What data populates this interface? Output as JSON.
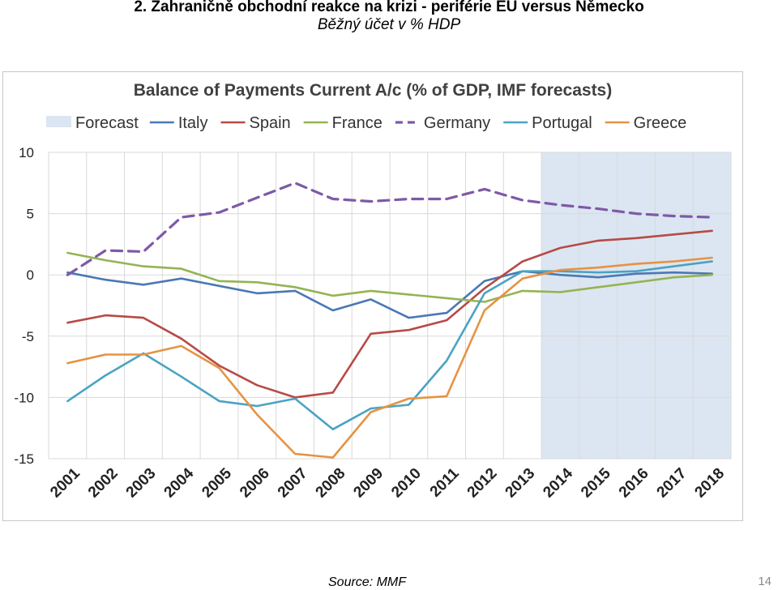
{
  "slide": {
    "title": "2. Zahraničně obchodní reakce na krizi - periférie EU versus Německo",
    "subtitle": "Běžný účet v % HDP",
    "source": "Source: MMF",
    "page_number": "14"
  },
  "chart_data": {
    "type": "line",
    "title": "Balance of Payments Current A/c (% of GDP, IMF forecasts)",
    "xlabel": "",
    "ylabel": "",
    "x": [
      "2001",
      "2002",
      "2003",
      "2004",
      "2005",
      "2006",
      "2007",
      "2008",
      "2009",
      "2010",
      "2011",
      "2012",
      "2013",
      "2014",
      "2015",
      "2016",
      "2017",
      "2018"
    ],
    "ylim": [
      -15,
      10
    ],
    "yticks": [
      10,
      5,
      0,
      -5,
      -10,
      -15
    ],
    "grid": true,
    "legend_position": "top",
    "forecast": {
      "label": "Forecast",
      "start": "2014",
      "end": "2018",
      "color": "#dce6f2"
    },
    "series": [
      {
        "name": "Italy",
        "color": "#4a78b5",
        "dash": false,
        "values": [
          0.2,
          -0.4,
          -0.8,
          -0.3,
          -0.9,
          -1.5,
          -1.3,
          -2.9,
          -2.0,
          -3.5,
          -3.1,
          -0.5,
          0.3,
          0.0,
          -0.2,
          0.1,
          0.2,
          0.1
        ]
      },
      {
        "name": "Spain",
        "color": "#b64b46",
        "dash": false,
        "values": [
          -3.9,
          -3.3,
          -3.5,
          -5.2,
          -7.4,
          -9.0,
          -10.0,
          -9.6,
          -4.8,
          -4.5,
          -3.7,
          -1.1,
          1.1,
          2.2,
          2.8,
          3.0,
          3.3,
          3.6
        ]
      },
      {
        "name": "France",
        "color": "#94b453",
        "dash": false,
        "values": [
          1.8,
          1.2,
          0.7,
          0.5,
          -0.5,
          -0.6,
          -1.0,
          -1.7,
          -1.3,
          -1.6,
          -1.9,
          -2.2,
          -1.3,
          -1.4,
          -1.0,
          -0.6,
          -0.2,
          0.0
        ]
      },
      {
        "name": "Germany",
        "color": "#7d5aa6",
        "dash": true,
        "values": [
          0.0,
          2.0,
          1.9,
          4.7,
          5.1,
          6.3,
          7.5,
          6.2,
          6.0,
          6.2,
          6.2,
          7.0,
          6.1,
          5.7,
          5.4,
          5.0,
          4.8,
          4.7
        ]
      },
      {
        "name": "Portugal",
        "color": "#4aa3c2",
        "dash": false,
        "values": [
          -10.3,
          -8.2,
          -6.4,
          -8.3,
          -10.3,
          -10.7,
          -10.1,
          -12.6,
          -10.9,
          -10.6,
          -7.0,
          -1.5,
          0.3,
          0.3,
          0.2,
          0.3,
          0.7,
          1.1
        ]
      },
      {
        "name": "Greece",
        "color": "#e59343",
        "dash": false,
        "values": [
          -7.2,
          -6.5,
          -6.5,
          -5.8,
          -7.6,
          -11.4,
          -14.6,
          -14.9,
          -11.2,
          -10.1,
          -9.9,
          -2.9,
          -0.3,
          0.4,
          0.6,
          0.9,
          1.1,
          1.4
        ]
      }
    ]
  }
}
